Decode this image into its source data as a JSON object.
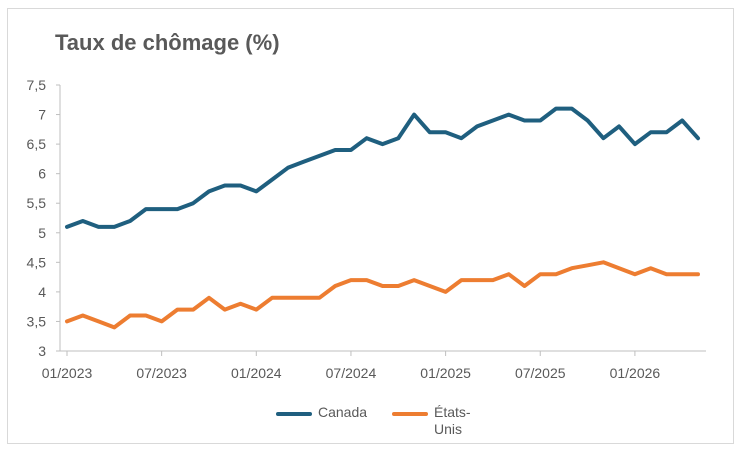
{
  "chart_data": {
    "type": "line",
    "title": "Taux de chômage (%)",
    "xlabel": "",
    "ylabel": "",
    "ylim": [
      3,
      7.5
    ],
    "yticks": [
      "3",
      "3,5",
      "4",
      "4,5",
      "5",
      "5,5",
      "6",
      "6,5",
      "7",
      "7,5"
    ],
    "x_tick_labels": [
      "01/2023",
      "07/2023",
      "01/2024",
      "07/2024",
      "01/2025",
      "07/2025",
      "01/2026"
    ],
    "x": [
      "2023-01",
      "2023-02",
      "2023-03",
      "2023-04",
      "2023-05",
      "2023-06",
      "2023-07",
      "2023-08",
      "2023-09",
      "2023-10",
      "2023-11",
      "2023-12",
      "2024-01",
      "2024-02",
      "2024-03",
      "2024-04",
      "2024-05",
      "2024-06",
      "2024-07",
      "2024-08",
      "2024-09",
      "2024-10",
      "2024-11",
      "2024-12",
      "2025-01",
      "2025-02",
      "2025-03",
      "2025-04",
      "2025-05",
      "2025-06",
      "2025-07",
      "2025-08",
      "2025-09",
      "2025-10",
      "2025-11",
      "2025-12",
      "2026-01",
      "2026-02",
      "2026-03",
      "2026-04",
      "2026-05"
    ],
    "series": [
      {
        "name": "Canada",
        "color": "#1f5f7f",
        "values": [
          5.1,
          5.2,
          5.1,
          5.1,
          5.2,
          5.4,
          5.4,
          5.4,
          5.5,
          5.7,
          5.8,
          5.8,
          5.7,
          5.9,
          6.1,
          6.2,
          6.3,
          6.4,
          6.4,
          6.6,
          6.5,
          6.6,
          7.0,
          6.7,
          6.7,
          6.6,
          6.8,
          6.9,
          7.0,
          6.9,
          6.9,
          7.1,
          7.1,
          6.9,
          6.6,
          6.8,
          6.5,
          6.7,
          6.7,
          6.9,
          6.6
        ]
      },
      {
        "name": "États-Unis",
        "label_lines": [
          "États-",
          "Unis"
        ],
        "color": "#ed7d31",
        "values": [
          3.5,
          3.6,
          3.5,
          3.4,
          3.6,
          3.6,
          3.5,
          3.7,
          3.7,
          3.9,
          3.7,
          3.8,
          3.7,
          3.9,
          3.9,
          3.9,
          3.9,
          4.1,
          4.2,
          4.2,
          4.1,
          4.1,
          4.2,
          4.1,
          4.0,
          4.2,
          4.2,
          4.2,
          4.3,
          4.1,
          4.3,
          4.3,
          4.4,
          4.45,
          4.5,
          4.4,
          4.3,
          4.4,
          4.3,
          4.3,
          4.3
        ]
      }
    ],
    "grid": false,
    "legend_position": "bottom"
  }
}
